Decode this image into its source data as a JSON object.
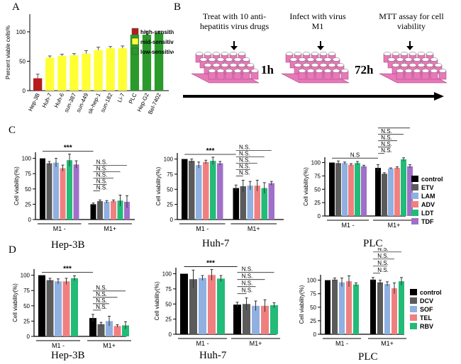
{
  "figure": {
    "panels": {
      "a": "A",
      "b": "B",
      "c": "C",
      "d": "D"
    },
    "cell_lines": [
      "Hep-3B",
      "Huh-7",
      "PLC"
    ],
    "colors": {
      "red": "#b51c1c",
      "yellow": "#ffff33",
      "green": "#2a9a2a",
      "pink": "#e878b8",
      "error": "#333333"
    }
  },
  "workflow": {
    "step1": "Treat with 10 anti-hepatitis virus drugs",
    "step2": "Infect with virus M1",
    "step3": "MTT assay for cell viability",
    "time1": "1h",
    "time2": "72h"
  },
  "chart_data": [
    {
      "panel": "A",
      "type": "bar",
      "ylabel": "Percent viable cells%",
      "ylim": [
        0,
        130
      ],
      "yticks": [
        0,
        50,
        100
      ],
      "categories": [
        "Hep-3B",
        "Huh-7",
        "Huh-6",
        "sun-387",
        "sun-449",
        "sk-hep-1",
        "sun-182",
        "Li-7",
        "PLC",
        "Hep-G2",
        "Bel-7402"
      ],
      "values": [
        21,
        56,
        59,
        60,
        63,
        69,
        72,
        72,
        95,
        95,
        98
      ],
      "errors": [
        7,
        3,
        3,
        3,
        5,
        5,
        3,
        4,
        4,
        6,
        3
      ],
      "groups": [
        "high",
        "mid",
        "mid",
        "mid",
        "mid",
        "mid",
        "mid",
        "mid",
        "low",
        "low",
        "low"
      ],
      "legend": [
        {
          "key": "high",
          "label": "high-sensitive",
          "color": "#b51c1c"
        },
        {
          "key": "mid",
          "label": "mid-sensitive",
          "color": "#ffff33"
        },
        {
          "key": "low",
          "label": "low-sensitive",
          "color": "#2a9a2a"
        }
      ]
    },
    {
      "panel": "C",
      "type": "bar",
      "cell_line": "Hep-3B",
      "ylabel": "Cell viability(%)",
      "ylim": [
        0,
        110
      ],
      "yticks": [
        0,
        25,
        50,
        75,
        100
      ],
      "groups": [
        "M1 -",
        "M1+"
      ],
      "series": [
        {
          "name": "control",
          "color": "#000000",
          "values": [
            100,
            25
          ],
          "errors": [
            0,
            2
          ]
        },
        {
          "name": "ETV",
          "color": "#5b5b5b",
          "values": [
            92,
            30
          ],
          "errors": [
            3,
            2
          ]
        },
        {
          "name": "LAM",
          "color": "#8fb0e0",
          "values": [
            93,
            29
          ],
          "errors": [
            7,
            2
          ]
        },
        {
          "name": "ADV",
          "color": "#f08080",
          "values": [
            84,
            30
          ],
          "errors": [
            5,
            2
          ]
        },
        {
          "name": "LDT",
          "color": "#22bb77",
          "values": [
            97,
            31
          ],
          "errors": [
            10,
            9
          ]
        },
        {
          "name": "TDF",
          "color": "#a070c8",
          "values": [
            90,
            29
          ],
          "errors": [
            6,
            10
          ]
        }
      ],
      "sig_main": "***",
      "ns_label": "N.S."
    },
    {
      "panel": "C",
      "type": "bar",
      "cell_line": "Huh-7",
      "ylabel": "Cell viability(%)",
      "ylim": [
        0,
        110
      ],
      "yticks": [
        0,
        25,
        50,
        75,
        100
      ],
      "groups": [
        "M1 -",
        "M1+"
      ],
      "series": [
        {
          "name": "control",
          "color": "#000000",
          "values": [
            100,
            52
          ],
          "errors": [
            0,
            5
          ]
        },
        {
          "name": "ETV",
          "color": "#5b5b5b",
          "values": [
            97,
            55
          ],
          "errors": [
            3,
            10
          ]
        },
        {
          "name": "LAM",
          "color": "#8fb0e0",
          "values": [
            90,
            56
          ],
          "errors": [
            5,
            7
          ]
        },
        {
          "name": "ADV",
          "color": "#f08080",
          "values": [
            95,
            56
          ],
          "errors": [
            3,
            9
          ]
        },
        {
          "name": "LDT",
          "color": "#22bb77",
          "values": [
            97,
            52
          ],
          "errors": [
            6,
            9
          ]
        },
        {
          "name": "TDF",
          "color": "#a070c8",
          "values": [
            93,
            60
          ],
          "errors": [
            3,
            3
          ]
        }
      ],
      "sig_main": "***",
      "ns_label": "N.S."
    },
    {
      "panel": "C",
      "type": "bar",
      "cell_line": "PLC",
      "ylabel": "Cell viability(%)",
      "ylim": [
        0,
        110
      ],
      "yticks": [
        0,
        25,
        50,
        75,
        100
      ],
      "groups": [
        "M1 -",
        "M1+"
      ],
      "series": [
        {
          "name": "control",
          "color": "#000000",
          "values": [
            100,
            90
          ],
          "errors": [
            0,
            6
          ]
        },
        {
          "name": "ETV",
          "color": "#5b5b5b",
          "values": [
            99,
            79
          ],
          "errors": [
            4,
            2
          ]
        },
        {
          "name": "LAM",
          "color": "#8fb0e0",
          "values": [
            99,
            89
          ],
          "errors": [
            2,
            1
          ]
        },
        {
          "name": "ADV",
          "color": "#f08080",
          "values": [
            96,
            90
          ],
          "errors": [
            2,
            2
          ]
        },
        {
          "name": "LDT",
          "color": "#22bb77",
          "values": [
            99,
            106
          ],
          "errors": [
            3,
            3
          ]
        },
        {
          "name": "TDF",
          "color": "#a070c8",
          "values": [
            93,
            93
          ],
          "errors": [
            2,
            3
          ]
        }
      ],
      "sig_main": "N.S",
      "ns_label": "N.S."
    },
    {
      "panel": "D",
      "type": "bar",
      "cell_line": "Hep-3B",
      "ylabel": "Cell viability(%)",
      "ylim": [
        0,
        110
      ],
      "yticks": [
        0,
        25,
        50,
        75,
        100
      ],
      "groups": [
        "M1 -",
        "M1+"
      ],
      "series": [
        {
          "name": "control",
          "color": "#000000",
          "values": [
            100,
            30
          ],
          "errors": [
            0,
            6
          ]
        },
        {
          "name": "DCV",
          "color": "#5b5b5b",
          "values": [
            92,
            20
          ],
          "errors": [
            3,
            3
          ]
        },
        {
          "name": "SOF",
          "color": "#8fb0e0",
          "values": [
            90,
            25
          ],
          "errors": [
            4,
            8
          ]
        },
        {
          "name": "TEL",
          "color": "#f08080",
          "values": [
            90,
            17
          ],
          "errors": [
            5,
            2
          ]
        },
        {
          "name": "RBV",
          "color": "#22bb77",
          "values": [
            95,
            18
          ],
          "errors": [
            4,
            6
          ]
        }
      ],
      "sig_main": "***",
      "ns_label": "N.S."
    },
    {
      "panel": "D",
      "type": "bar",
      "cell_line": "Huh-7",
      "ylabel": "Cell viability(%)",
      "ylim": [
        0,
        110
      ],
      "yticks": [
        0,
        25,
        50,
        75,
        100
      ],
      "groups": [
        "M1 -",
        "M1+"
      ],
      "series": [
        {
          "name": "control",
          "color": "#000000",
          "values": [
            100,
            49
          ],
          "errors": [
            0,
            4
          ]
        },
        {
          "name": "DCV",
          "color": "#5b5b5b",
          "values": [
            91,
            50
          ],
          "errors": [
            15,
            10
          ]
        },
        {
          "name": "SOF",
          "color": "#8fb0e0",
          "values": [
            93,
            47
          ],
          "errors": [
            4,
            8
          ]
        },
        {
          "name": "TEL",
          "color": "#f08080",
          "values": [
            98,
            47
          ],
          "errors": [
            9,
            10
          ]
        },
        {
          "name": "RBV",
          "color": "#22bb77",
          "values": [
            92,
            48
          ],
          "errors": [
            5,
            4
          ]
        }
      ],
      "sig_main": "***",
      "ns_label": "N.S."
    },
    {
      "panel": "D",
      "type": "bar",
      "cell_line": "PLC",
      "ylabel": "Cell viability(%)",
      "ylim": [
        0,
        110
      ],
      "yticks": [
        0,
        25,
        50,
        75,
        100
      ],
      "groups": [
        "M1 -",
        "M1+"
      ],
      "series": [
        {
          "name": "control",
          "color": "#000000",
          "values": [
            100,
            101
          ],
          "errors": [
            0,
            4
          ]
        },
        {
          "name": "DCV",
          "color": "#5b5b5b",
          "values": [
            101,
            96
          ],
          "errors": [
            3,
            4
          ]
        },
        {
          "name": "SOF",
          "color": "#8fb0e0",
          "values": [
            96,
            93
          ],
          "errors": [
            8,
            4
          ]
        },
        {
          "name": "TEL",
          "color": "#f08080",
          "values": [
            98,
            85
          ],
          "errors": [
            10,
            10
          ]
        },
        {
          "name": "RBV",
          "color": "#22bb77",
          "values": [
            92,
            98
          ],
          "errors": [
            3,
            7
          ]
        }
      ],
      "sig_main": "",
      "ns_label": "N.S."
    }
  ]
}
